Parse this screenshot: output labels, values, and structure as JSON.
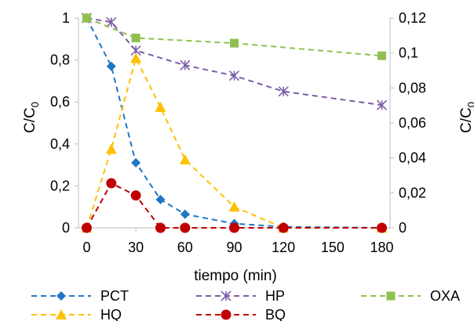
{
  "chart_data": {
    "type": "line",
    "xlabel": "tiempo (min)",
    "ylabel_left": {
      "main": "C/C",
      "sub": "0"
    },
    "ylabel_right": {
      "main": "C/C",
      "sub": "0"
    },
    "x_ticks": [
      "0",
      "30",
      "60",
      "90",
      "120",
      "150",
      "180"
    ],
    "x_tick_values": [
      0,
      30,
      60,
      90,
      120,
      150,
      180
    ],
    "xlim": [
      -5,
      185
    ],
    "ylim_left": [
      0,
      1
    ],
    "ylim_right": [
      0,
      0.12
    ],
    "y_ticks_left": [
      "0",
      "0,2",
      "0,4",
      "0,6",
      "0,8",
      "1"
    ],
    "y_tick_values_left": [
      0,
      0.2,
      0.4,
      0.6,
      0.8,
      1
    ],
    "y_ticks_right": [
      "0",
      "0,02",
      "0,04",
      "0,06",
      "0,08",
      "0,1",
      "0,12"
    ],
    "y_tick_values_right": [
      0,
      0.02,
      0.04,
      0.06,
      0.08,
      0.1,
      0.12
    ],
    "grid": false,
    "legend_position": "bottom",
    "series": [
      {
        "name": "PCT",
        "axis": "left",
        "color": "#1f77c4",
        "marker": "diamond",
        "x": [
          0,
          15,
          30,
          45,
          60,
          90,
          120,
          180
        ],
        "y": [
          1.0,
          0.77,
          0.31,
          0.135,
          0.065,
          0.02,
          0.005,
          0.0
        ]
      },
      {
        "name": "HP",
        "axis": "left",
        "color": "#7b5ea7",
        "marker": "star",
        "x": [
          0,
          15,
          30,
          60,
          90,
          120,
          180
        ],
        "y": [
          1.0,
          0.98,
          0.845,
          0.775,
          0.725,
          0.65,
          0.585
        ]
      },
      {
        "name": "OXA",
        "axis": "left",
        "color": "#8fbf4f",
        "marker": "square",
        "x": [
          0,
          30,
          90,
          180
        ],
        "y": [
          1.0,
          0.905,
          0.88,
          0.82
        ]
      },
      {
        "name": "HQ",
        "axis": "right",
        "color": "#ffc000",
        "marker": "triangle",
        "x": [
          0,
          15,
          30,
          45,
          60,
          90,
          120,
          180
        ],
        "y": [
          0.0,
          0.045,
          0.097,
          0.069,
          0.039,
          0.012,
          0.0,
          0.0
        ]
      },
      {
        "name": "BQ",
        "axis": "right",
        "color": "#c00000",
        "marker": "circle",
        "x": [
          0,
          15,
          30,
          45,
          60,
          90,
          120,
          180
        ],
        "y": [
          0.0,
          0.0255,
          0.0185,
          0.0,
          0.0,
          0.0,
          0.0,
          0.0
        ]
      }
    ]
  }
}
